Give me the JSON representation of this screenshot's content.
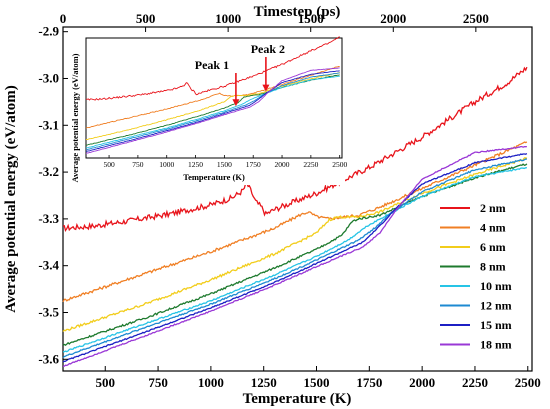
{
  "chart_data": {
    "type": "line",
    "xlabel": "Temperature (K)",
    "x2label": "Timestep (ps)",
    "ylabel": "Average potential energy (eV/atom)",
    "xlim": [
      300,
      2520
    ],
    "ylim": [
      -3.625,
      -2.89
    ],
    "x2lim": [
      0,
      2840
    ],
    "xticks": [
      "500",
      "750",
      "1000",
      "1250",
      "1500",
      "1750",
      "2000",
      "2250",
      "2500"
    ],
    "xtick_values": [
      500,
      750,
      1000,
      1250,
      1500,
      1750,
      2000,
      2250,
      2500
    ],
    "x2ticks": [
      "0",
      "500",
      "1000",
      "1500",
      "2000",
      "2500"
    ],
    "x2tick_values": [
      0,
      500,
      1000,
      1500,
      2000,
      2500
    ],
    "yticks": [
      "-2.9",
      "-3.0",
      "-3.1",
      "-3.2",
      "-3.3",
      "-3.4",
      "-3.5",
      "-3.6"
    ],
    "ytick_values": [
      -2.9,
      -3.0,
      -3.1,
      -3.2,
      -3.3,
      -3.4,
      -3.5,
      -3.6
    ],
    "legend_position": "right",
    "series": [
      {
        "name": "2 nm",
        "color": "#e8141b",
        "noise": 0.006,
        "points": [
          [
            300,
            -3.32
          ],
          [
            450,
            -3.315
          ],
          [
            600,
            -3.305
          ],
          [
            800,
            -3.29
          ],
          [
            1000,
            -3.27
          ],
          [
            1100,
            -3.255
          ],
          [
            1150,
            -3.24
          ],
          [
            1170,
            -3.225
          ],
          [
            1190,
            -3.24
          ],
          [
            1210,
            -3.262
          ],
          [
            1240,
            -3.275
          ],
          [
            1260,
            -3.29
          ],
          [
            1300,
            -3.28
          ],
          [
            1500,
            -3.245
          ],
          [
            1750,
            -3.19
          ],
          [
            2000,
            -3.125
          ],
          [
            2250,
            -3.05
          ],
          [
            2400,
            -3.01
          ],
          [
            2500,
            -2.975
          ]
        ]
      },
      {
        "name": "4 nm",
        "color": "#f07f24",
        "noise": 0.003,
        "points": [
          [
            300,
            -3.475
          ],
          [
            700,
            -3.415
          ],
          [
            1000,
            -3.37
          ],
          [
            1300,
            -3.32
          ],
          [
            1420,
            -3.292
          ],
          [
            1460,
            -3.285
          ],
          [
            1500,
            -3.295
          ],
          [
            1560,
            -3.3
          ],
          [
            1700,
            -3.292
          ],
          [
            1800,
            -3.275
          ],
          [
            2000,
            -3.235
          ],
          [
            2250,
            -3.185
          ],
          [
            2500,
            -3.135
          ]
        ]
      },
      {
        "name": "6 nm",
        "color": "#f2cd1b",
        "noise": 0.0025,
        "points": [
          [
            300,
            -3.54
          ],
          [
            700,
            -3.48
          ],
          [
            1000,
            -3.43
          ],
          [
            1300,
            -3.375
          ],
          [
            1500,
            -3.33
          ],
          [
            1560,
            -3.302
          ],
          [
            1600,
            -3.296
          ],
          [
            1700,
            -3.296
          ],
          [
            1800,
            -3.285
          ],
          [
            2000,
            -3.245
          ],
          [
            2250,
            -3.205
          ],
          [
            2500,
            -3.17
          ]
        ]
      },
      {
        "name": "8 nm",
        "color": "#1e7a2e",
        "noise": 0.002,
        "points": [
          [
            300,
            -3.57
          ],
          [
            700,
            -3.51
          ],
          [
            1000,
            -3.46
          ],
          [
            1300,
            -3.405
          ],
          [
            1500,
            -3.365
          ],
          [
            1620,
            -3.335
          ],
          [
            1670,
            -3.305
          ],
          [
            1700,
            -3.3
          ],
          [
            1800,
            -3.292
          ],
          [
            2000,
            -3.252
          ],
          [
            2250,
            -3.212
          ],
          [
            2500,
            -3.182
          ]
        ]
      },
      {
        "name": "10 nm",
        "color": "#26c4e6",
        "noise": 0.0015,
        "points": [
          [
            300,
            -3.585
          ],
          [
            700,
            -3.522
          ],
          [
            1000,
            -3.475
          ],
          [
            1300,
            -3.42
          ],
          [
            1500,
            -3.38
          ],
          [
            1650,
            -3.345
          ],
          [
            1740,
            -3.315
          ],
          [
            1800,
            -3.3
          ],
          [
            2000,
            -3.252
          ],
          [
            2250,
            -3.21
          ],
          [
            2500,
            -3.19
          ]
        ]
      },
      {
        "name": "12 nm",
        "color": "#1d8ad2",
        "noise": 0.0015,
        "points": [
          [
            300,
            -3.595
          ],
          [
            700,
            -3.53
          ],
          [
            1000,
            -3.482
          ],
          [
            1300,
            -3.428
          ],
          [
            1500,
            -3.388
          ],
          [
            1700,
            -3.345
          ],
          [
            1780,
            -3.318
          ],
          [
            1840,
            -3.292
          ],
          [
            2000,
            -3.242
          ],
          [
            2250,
            -3.195
          ],
          [
            2500,
            -3.172
          ]
        ]
      },
      {
        "name": "15 nm",
        "color": "#1c1fc4",
        "noise": 0.0012,
        "points": [
          [
            300,
            -3.605
          ],
          [
            700,
            -3.54
          ],
          [
            1000,
            -3.49
          ],
          [
            1300,
            -3.436
          ],
          [
            1500,
            -3.395
          ],
          [
            1720,
            -3.35
          ],
          [
            1800,
            -3.315
          ],
          [
            1860,
            -3.285
          ],
          [
            2000,
            -3.225
          ],
          [
            2250,
            -3.18
          ],
          [
            2500,
            -3.16
          ]
        ]
      },
      {
        "name": "18 nm",
        "color": "#9a38d6",
        "noise": 0.0012,
        "points": [
          [
            300,
            -3.615
          ],
          [
            700,
            -3.548
          ],
          [
            1000,
            -3.497
          ],
          [
            1300,
            -3.442
          ],
          [
            1500,
            -3.402
          ],
          [
            1720,
            -3.36
          ],
          [
            1800,
            -3.33
          ],
          [
            1870,
            -3.285
          ],
          [
            2000,
            -3.215
          ],
          [
            2250,
            -3.158
          ],
          [
            2500,
            -3.145
          ]
        ]
      }
    ],
    "inset": {
      "xlabel": "Temperature (K)",
      "ylabel": "Average potential energy (eV/atom)",
      "xticks": [
        "500",
        "750",
        "1000",
        "1250",
        "1500",
        "1750",
        "2000",
        "2250",
        "2500"
      ],
      "xtick_values": [
        500,
        750,
        1000,
        1250,
        1500,
        1750,
        2000,
        2250,
        2500
      ],
      "xlim": [
        300,
        2520
      ],
      "annotations": [
        {
          "label": "Peak 1",
          "x": 1600
        },
        {
          "label": "Peak 2",
          "x": 1860
        }
      ]
    }
  }
}
